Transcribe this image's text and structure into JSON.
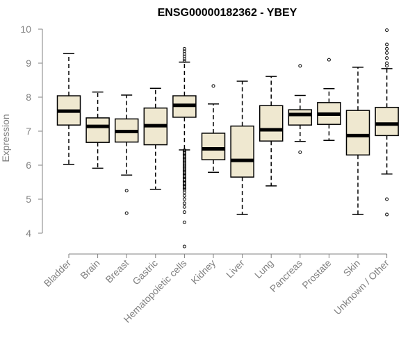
{
  "chart_data": {
    "type": "box",
    "title": "ENSG00000182362 - YBEY",
    "ylabel": "Expression",
    "xlabel": "",
    "ylim": [
      3.5,
      10.1
    ],
    "yticks": [
      4,
      5,
      6,
      7,
      8,
      9,
      10
    ],
    "grid": false,
    "box_fill": "#efe8d0",
    "categories": [
      "Bladder",
      "Brain",
      "Breast",
      "Gastric",
      "Hematopoietic cells",
      "Kidney",
      "Liver",
      "Lung",
      "Pancreas",
      "Prostate",
      "Skin",
      "Unknown / Other"
    ],
    "boxes": [
      {
        "category": "Bladder",
        "min": 6.02,
        "q1": 7.18,
        "median": 7.59,
        "q3": 8.04,
        "max": 9.28,
        "outliers": []
      },
      {
        "category": "Brain",
        "min": 5.91,
        "q1": 6.67,
        "median": 7.14,
        "q3": 7.39,
        "max": 8.15,
        "outliers": []
      },
      {
        "category": "Breast",
        "min": 5.71,
        "q1": 6.68,
        "median": 6.99,
        "q3": 7.36,
        "max": 8.06,
        "outliers": [
          5.25,
          4.59
        ]
      },
      {
        "category": "Gastric",
        "min": 5.29,
        "q1": 6.6,
        "median": 7.16,
        "q3": 7.68,
        "max": 8.26,
        "outliers": []
      },
      {
        "category": "Hematopoietic cells",
        "min": 6.45,
        "q1": 7.41,
        "median": 7.76,
        "q3": 8.04,
        "max": 9.03,
        "outliers": [
          9.42,
          9.35,
          9.27,
          9.2,
          9.12,
          9.06,
          6.44,
          6.4,
          6.36,
          6.32,
          6.28,
          6.24,
          6.2,
          6.16,
          6.12,
          6.08,
          6.04,
          6.0,
          5.96,
          5.92,
          5.88,
          5.84,
          5.8,
          5.76,
          5.72,
          5.68,
          5.64,
          5.6,
          5.56,
          5.52,
          5.48,
          5.44,
          5.4,
          5.36,
          5.32,
          5.28,
          5.2,
          5.1,
          5.0,
          4.88,
          4.77,
          4.62,
          4.32,
          3.61
        ]
      },
      {
        "category": "Kidney",
        "min": 5.79,
        "q1": 6.16,
        "median": 6.48,
        "q3": 6.94,
        "max": 7.8,
        "outliers": [
          8.33
        ]
      },
      {
        "category": "Liver",
        "min": 4.55,
        "q1": 5.65,
        "median": 6.14,
        "q3": 7.15,
        "max": 8.47,
        "outliers": []
      },
      {
        "category": "Lung",
        "min": 5.39,
        "q1": 6.71,
        "median": 7.04,
        "q3": 7.75,
        "max": 8.61,
        "outliers": []
      },
      {
        "category": "Pancreas",
        "min": 6.7,
        "q1": 7.18,
        "median": 7.49,
        "q3": 7.63,
        "max": 8.05,
        "outliers": [
          8.92,
          6.38
        ]
      },
      {
        "category": "Prostate",
        "min": 6.73,
        "q1": 7.2,
        "median": 7.5,
        "q3": 7.84,
        "max": 8.25,
        "outliers": [
          9.1
        ]
      },
      {
        "category": "Skin",
        "min": 4.55,
        "q1": 6.3,
        "median": 6.87,
        "q3": 7.61,
        "max": 8.88,
        "outliers": []
      },
      {
        "category": "Unknown / Other",
        "min": 5.74,
        "q1": 6.87,
        "median": 7.21,
        "q3": 7.7,
        "max": 8.84,
        "outliers": [
          9.97,
          9.55,
          9.42,
          9.3,
          9.15,
          9.0,
          8.92,
          5.0,
          4.55
        ]
      }
    ]
  }
}
